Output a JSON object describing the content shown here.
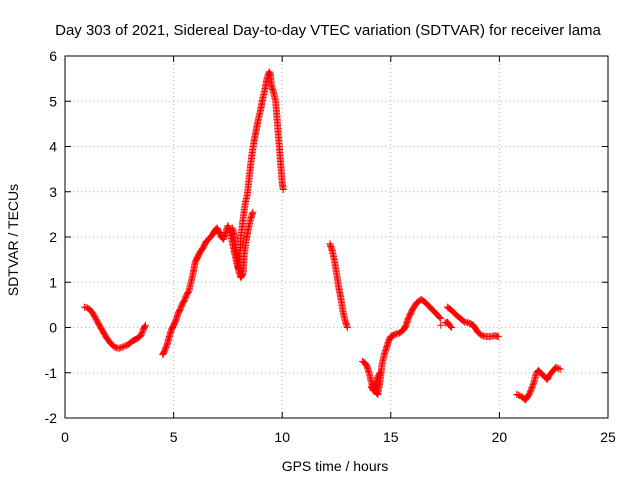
{
  "chart_data": {
    "type": "scatter",
    "title": "Day 303 of 2021, Sidereal Day-to-day VTEC variation (SDTVAR) for receiver lama",
    "xlabel": "GPS time / hours",
    "ylabel": "SDTVAR / TECUs",
    "xlim": [
      0,
      25
    ],
    "ylim": [
      -2,
      6
    ],
    "xticks": [
      0,
      5,
      10,
      15,
      20,
      25
    ],
    "yticks": [
      -2,
      -1,
      0,
      1,
      2,
      3,
      4,
      5,
      6
    ],
    "grid": true,
    "marker": "+",
    "color": "#ff0000",
    "segments": [
      [
        [
          0.9,
          0.45
        ],
        [
          1.1,
          0.42
        ],
        [
          1.3,
          0.3
        ],
        [
          1.5,
          0.12
        ],
        [
          1.7,
          -0.05
        ],
        [
          1.9,
          -0.22
        ],
        [
          2.1,
          -0.35
        ],
        [
          2.3,
          -0.44
        ],
        [
          2.5,
          -0.46
        ],
        [
          2.7,
          -0.42
        ],
        [
          2.9,
          -0.38
        ],
        [
          3.1,
          -0.3
        ],
        [
          3.3,
          -0.25
        ],
        [
          3.5,
          -0.18
        ],
        [
          3.6,
          -0.05
        ],
        [
          3.7,
          0.05
        ]
      ],
      [
        [
          4.5,
          -0.6
        ],
        [
          4.6,
          -0.5
        ],
        [
          4.7,
          -0.38
        ],
        [
          4.8,
          -0.2
        ],
        [
          4.9,
          -0.05
        ],
        [
          5.0,
          0.05
        ],
        [
          5.1,
          0.15
        ],
        [
          5.2,
          0.3
        ],
        [
          5.3,
          0.4
        ],
        [
          5.4,
          0.52
        ],
        [
          5.5,
          0.6
        ],
        [
          5.6,
          0.72
        ],
        [
          5.7,
          0.8
        ],
        [
          5.8,
          1.0
        ],
        [
          5.9,
          1.2
        ],
        [
          6.0,
          1.45
        ],
        [
          6.1,
          1.55
        ],
        [
          6.2,
          1.65
        ],
        [
          6.3,
          1.72
        ],
        [
          6.4,
          1.8
        ],
        [
          6.5,
          1.9
        ],
        [
          6.6,
          1.95
        ],
        [
          6.7,
          2.0
        ],
        [
          6.8,
          2.05
        ],
        [
          6.9,
          2.15
        ],
        [
          7.0,
          2.2
        ],
        [
          7.1,
          2.1
        ],
        [
          7.2,
          2.0
        ],
        [
          7.3,
          1.95
        ],
        [
          7.4,
          2.1
        ],
        [
          7.5,
          2.25
        ],
        [
          7.6,
          2.1
        ],
        [
          7.7,
          1.9
        ],
        [
          7.8,
          1.65
        ],
        [
          7.9,
          1.45
        ],
        [
          8.0,
          1.25
        ],
        [
          8.1,
          1.1
        ],
        [
          8.2,
          1.2
        ],
        [
          8.25,
          1.6
        ],
        [
          8.35,
          1.95
        ],
        [
          8.45,
          2.2
        ],
        [
          8.55,
          2.4
        ],
        [
          8.65,
          2.55
        ]
      ],
      [
        [
          7.7,
          2.2
        ],
        [
          7.8,
          2.05
        ],
        [
          7.85,
          1.8
        ],
        [
          7.9,
          1.55
        ],
        [
          7.95,
          1.35
        ],
        [
          8.0,
          1.3
        ],
        [
          8.05,
          1.6
        ],
        [
          8.1,
          2.0
        ],
        [
          8.2,
          2.4
        ],
        [
          8.3,
          2.75
        ],
        [
          8.4,
          2.95
        ],
        [
          8.5,
          3.4
        ],
        [
          8.6,
          3.8
        ],
        [
          8.7,
          4.1
        ],
        [
          8.8,
          4.35
        ],
        [
          8.9,
          4.6
        ],
        [
          9.0,
          4.8
        ],
        [
          9.1,
          5.05
        ],
        [
          9.2,
          5.25
        ],
        [
          9.3,
          5.5
        ],
        [
          9.4,
          5.65
        ],
        [
          9.45,
          5.6
        ],
        [
          9.5,
          5.35
        ],
        [
          9.6,
          5.2
        ],
        [
          9.7,
          5.0
        ],
        [
          9.75,
          4.7
        ],
        [
          9.8,
          4.4
        ],
        [
          9.85,
          4.1
        ],
        [
          9.9,
          3.8
        ],
        [
          9.95,
          3.5
        ],
        [
          10.0,
          3.2
        ],
        [
          10.05,
          3.05
        ]
      ],
      [
        [
          12.2,
          1.85
        ],
        [
          12.3,
          1.7
        ],
        [
          12.4,
          1.5
        ],
        [
          12.5,
          1.2
        ],
        [
          12.6,
          0.9
        ],
        [
          12.7,
          0.65
        ],
        [
          12.8,
          0.35
        ],
        [
          12.9,
          0.15
        ],
        [
          13.0,
          0.0
        ]
      ],
      [
        [
          13.7,
          -0.75
        ],
        [
          13.8,
          -0.78
        ],
        [
          13.9,
          -0.85
        ],
        [
          14.0,
          -1.0
        ],
        [
          14.1,
          -1.2
        ],
        [
          14.2,
          -1.35
        ],
        [
          14.3,
          -1.42
        ],
        [
          14.4,
          -1.48
        ],
        [
          14.5,
          -1.2
        ],
        [
          14.55,
          -1.0
        ],
        [
          14.6,
          -0.8
        ],
        [
          14.7,
          -0.6
        ],
        [
          14.8,
          -0.45
        ],
        [
          14.9,
          -0.3
        ],
        [
          15.0,
          -0.2
        ],
        [
          15.2,
          -0.15
        ],
        [
          15.4,
          -0.12
        ],
        [
          15.6,
          -0.05
        ],
        [
          15.7,
          0.05
        ],
        [
          15.8,
          0.2
        ],
        [
          16.0,
          0.4
        ],
        [
          16.2,
          0.55
        ],
        [
          16.4,
          0.62
        ],
        [
          16.6,
          0.55
        ],
        [
          16.8,
          0.45
        ],
        [
          17.0,
          0.35
        ],
        [
          17.2,
          0.25
        ],
        [
          17.3,
          0.2
        ]
      ],
      [
        [
          14.1,
          -1.3
        ],
        [
          14.2,
          -1.4
        ],
        [
          14.3,
          -1.25
        ],
        [
          14.4,
          -1.1
        ],
        [
          14.5,
          -1.0
        ]
      ],
      [
        [
          17.3,
          0.05
        ]
      ],
      [
        [
          17.6,
          0.45
        ],
        [
          17.8,
          0.38
        ],
        [
          18.0,
          0.28
        ],
        [
          18.2,
          0.2
        ],
        [
          18.4,
          0.12
        ],
        [
          18.6,
          0.1
        ],
        [
          18.8,
          0.05
        ],
        [
          19.0,
          -0.1
        ],
        [
          19.2,
          -0.18
        ],
        [
          19.4,
          -0.2
        ],
        [
          19.6,
          -0.2
        ],
        [
          19.8,
          -0.18
        ],
        [
          19.95,
          -0.2
        ]
      ],
      [
        [
          17.5,
          0.1
        ],
        [
          17.6,
          0.12
        ],
        [
          17.7,
          0.05
        ],
        [
          17.8,
          0.0
        ]
      ],
      [
        [
          20.8,
          -1.48
        ],
        [
          21.0,
          -1.52
        ],
        [
          21.2,
          -1.6
        ],
        [
          21.4,
          -1.45
        ],
        [
          21.6,
          -1.2
        ],
        [
          21.7,
          -1.0
        ],
        [
          21.8,
          -0.95
        ],
        [
          22.0,
          -1.05
        ],
        [
          22.2,
          -1.15
        ],
        [
          22.3,
          -1.05
        ],
        [
          22.4,
          -1.0
        ],
        [
          22.6,
          -0.88
        ],
        [
          22.8,
          -0.92
        ]
      ]
    ]
  }
}
